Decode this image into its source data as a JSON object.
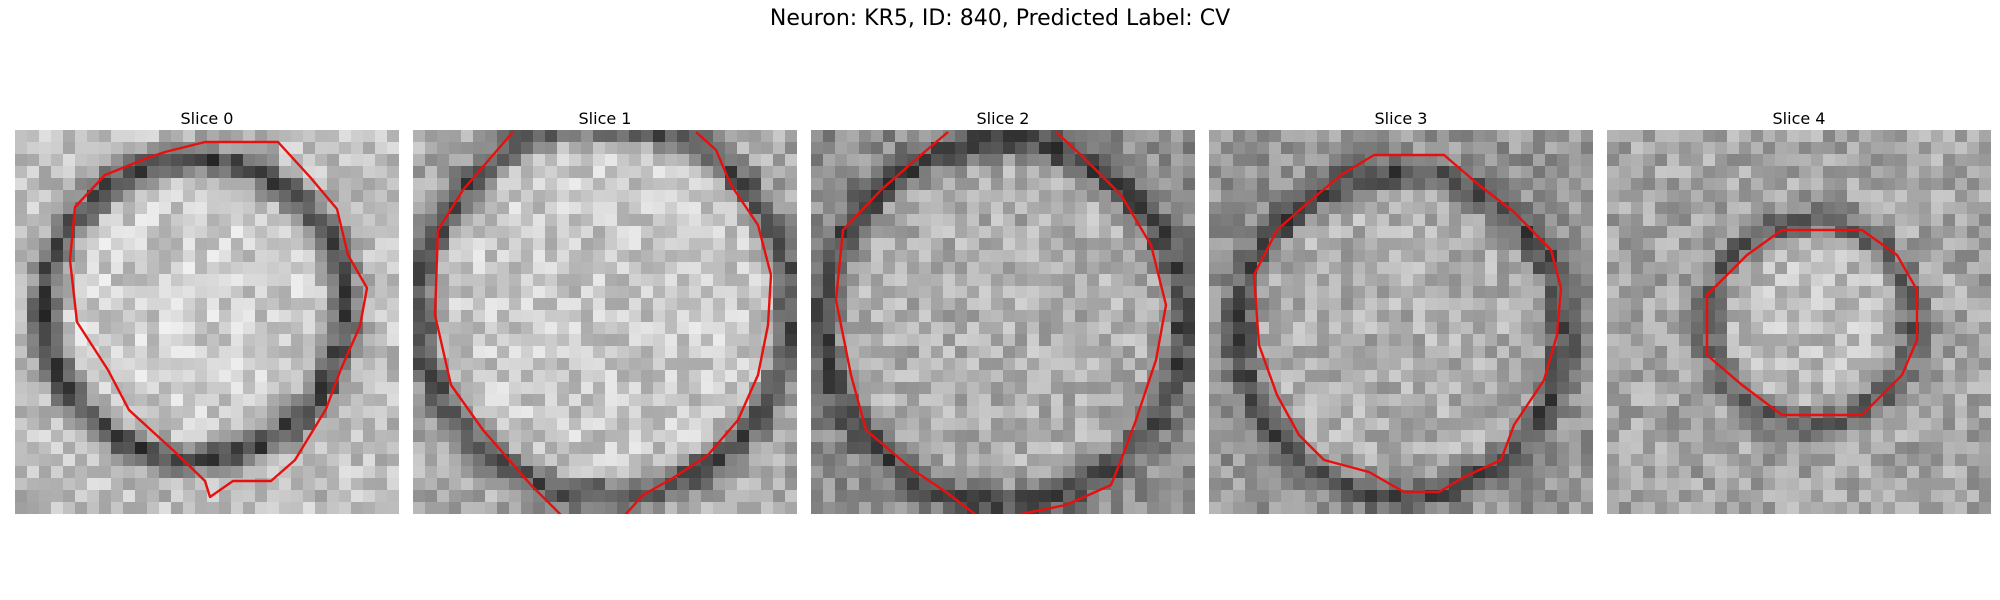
{
  "figure": {
    "title": "Neuron: KR5, ID: 840, Predicted Label: CV"
  },
  "panels": [
    {
      "label": "Slice 0"
    },
    {
      "label": "Slice 1"
    },
    {
      "label": "Slice 2"
    },
    {
      "label": "Slice 3"
    },
    {
      "label": "Slice 4"
    }
  ],
  "colors": {
    "contour": "#e8100e",
    "background": "#ffffff"
  }
}
